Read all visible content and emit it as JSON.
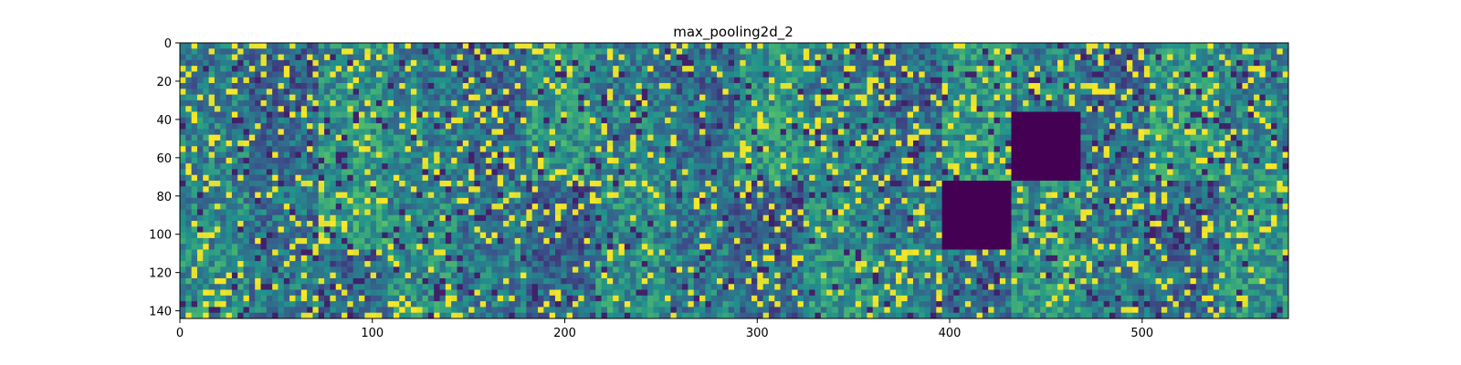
{
  "chart_data": {
    "type": "heatmap",
    "title": "max_pooling2d_2",
    "xlabel": "",
    "ylabel": "",
    "colormap": "viridis",
    "xlim": [
      0,
      576
    ],
    "ylim": [
      144,
      0
    ],
    "grid": false,
    "x_ticks": [
      0,
      100,
      200,
      300,
      400,
      500
    ],
    "y_ticks": [
      0,
      20,
      40,
      60,
      80,
      100,
      120,
      140
    ],
    "tiles": {
      "rows": 4,
      "cols": 16,
      "tile_size": 36
    },
    "uniform_tiles": [
      {
        "row": 1,
        "col": 12,
        "value": "low"
      },
      {
        "row": 2,
        "col": 11,
        "value": "low"
      }
    ]
  },
  "colors": {
    "viridis_low": "#440154",
    "viridis_mid": "#21918c",
    "viridis_high": "#fde725",
    "background": "#ffffff"
  }
}
